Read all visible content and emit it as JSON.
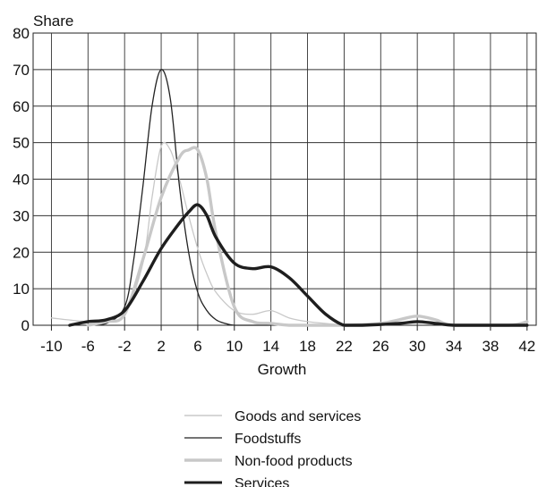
{
  "chart_data": {
    "type": "line",
    "title": "",
    "xlabel": "Growth",
    "ylabel": "Share",
    "xlim": [
      -12,
      43
    ],
    "ylim": [
      0,
      80
    ],
    "x_ticks": [
      -10,
      -6,
      -2,
      2,
      6,
      10,
      14,
      18,
      22,
      26,
      30,
      34,
      38,
      42
    ],
    "y_ticks": [
      0,
      10,
      20,
      30,
      40,
      50,
      60,
      70,
      80
    ],
    "grid": true,
    "legend_position": "bottom-center",
    "series": [
      {
        "name": "Goods and services",
        "color": "#c8c8c8",
        "style": "thin",
        "x": [
          -10,
          -6,
          -4,
          -2,
          0,
          1,
          2,
          3,
          4,
          5,
          6,
          7,
          8,
          10,
          12,
          14,
          16,
          18,
          20,
          22
        ],
        "y": [
          2,
          1,
          1.5,
          3,
          17,
          35,
          49,
          48,
          40,
          30,
          21,
          14,
          9,
          4,
          3,
          4,
          2,
          1,
          0.5,
          0
        ]
      },
      {
        "name": "Foodstuffs",
        "color": "#222222",
        "style": "thin",
        "x": [
          -6,
          -4,
          -2,
          -1,
          0,
          1,
          2,
          3,
          4,
          5,
          6,
          7,
          8,
          9,
          10,
          12,
          14
        ],
        "y": [
          0,
          0.5,
          5,
          18,
          38,
          60,
          70,
          62,
          38,
          20,
          9,
          4,
          1.5,
          0.5,
          0,
          0,
          0
        ]
      },
      {
        "name": "Non-food products",
        "color": "#c8c8c8",
        "style": "thick",
        "x": [
          -6,
          -4,
          -2,
          0,
          2,
          4,
          5,
          6,
          7,
          8,
          10,
          12,
          14,
          16,
          18,
          22,
          26,
          28,
          30,
          32,
          34,
          40,
          42
        ],
        "y": [
          0,
          1,
          3,
          18,
          35,
          46,
          48,
          48,
          40,
          25,
          5,
          1,
          0.5,
          0,
          0,
          0,
          0.5,
          1.5,
          2.5,
          1.5,
          0,
          0,
          1
        ]
      },
      {
        "name": "Services",
        "color": "#1e1e1e",
        "style": "thick",
        "x": [
          -8,
          -6,
          -4,
          -2,
          0,
          2,
          4,
          5,
          6,
          7,
          8,
          10,
          12,
          14,
          16,
          18,
          20,
          22,
          24,
          28,
          30,
          32,
          34,
          38,
          42
        ],
        "y": [
          0,
          1,
          1.5,
          4,
          12,
          21,
          28,
          31,
          33,
          30,
          24,
          17,
          15.5,
          16,
          13,
          8,
          3,
          0,
          0,
          0.5,
          1,
          0.5,
          0,
          0,
          0
        ]
      }
    ]
  }
}
